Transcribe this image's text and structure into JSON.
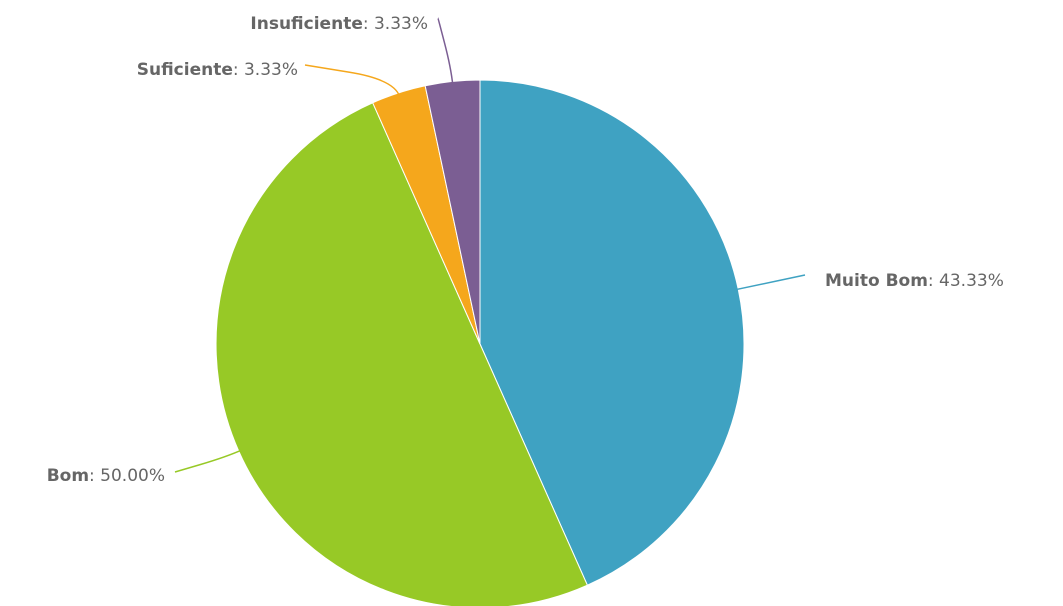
{
  "chart_data": {
    "type": "pie",
    "categories": [
      "Muito Bom",
      "Bom",
      "Suficiente",
      "Insuficiente"
    ],
    "values": [
      43.33,
      50.0,
      3.33,
      3.33
    ],
    "value_labels": [
      ": 43.33%",
      ": 50.00%",
      ": 3.33%",
      ": 3.33%"
    ],
    "colors": [
      "#3fa2c2",
      "#97c926",
      "#f5a71c",
      "#7b5e93"
    ]
  }
}
